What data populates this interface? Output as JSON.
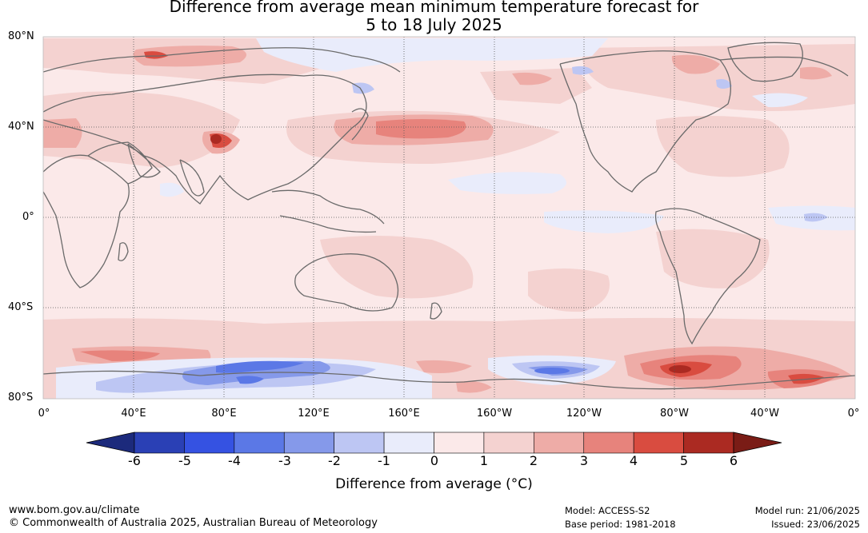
{
  "title_line1": "Difference from average mean minimum temperature forecast for",
  "title_line2": "5 to 18 July 2025",
  "lat_labels": [
    "80°N",
    "40°N",
    "0°",
    "40°S",
    "80°S"
  ],
  "lon_labels": [
    "0°",
    "40°E",
    "80°E",
    "120°E",
    "160°E",
    "160°W",
    "120°W",
    "80°W",
    "40°W",
    "0°"
  ],
  "colorbar": {
    "label": "Difference from average (°C)",
    "ticks": [
      "-6",
      "-5",
      "-4",
      "-3",
      "-2",
      "-1",
      "0",
      "1",
      "2",
      "3",
      "4",
      "5",
      "6"
    ],
    "colors": [
      "#1c2a7c",
      "#2a40b5",
      "#3552e2",
      "#5b78e6",
      "#8599ea",
      "#bdc6f3",
      "#e9ecfb",
      "#fbe9e9",
      "#f4d2d0",
      "#eeaca7",
      "#e7837c",
      "#d94c40",
      "#ab2a22",
      "#7a1c16"
    ]
  },
  "footer": {
    "website": "www.bom.gov.au/climate",
    "copyright": "© Commonwealth of Australia 2025, Australian Bureau of Meteorology",
    "model": "Model: ACCESS-S2",
    "base_period": "Base period: 1981-2018",
    "model_run": "Model run: 21/06/2025",
    "issued": "Issued: 23/06/2025"
  }
}
